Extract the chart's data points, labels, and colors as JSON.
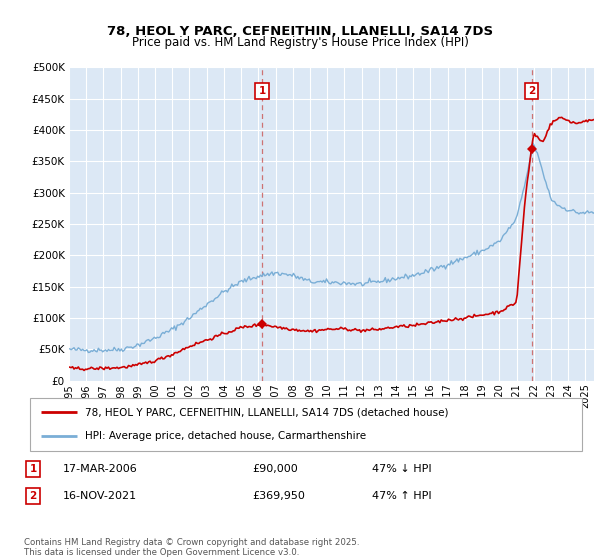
{
  "title": "78, HEOL Y PARC, CEFNEITHIN, LLANELLI, SA14 7DS",
  "subtitle": "Price paid vs. HM Land Registry's House Price Index (HPI)",
  "red_label": "78, HEOL Y PARC, CEFNEITHIN, LLANELLI, SA14 7DS (detached house)",
  "blue_label": "HPI: Average price, detached house, Carmarthenshire",
  "t1_date": "17-MAR-2006",
  "t1_price": 90000,
  "t1_price_str": "£90,000",
  "t1_pct": "47% ↓ HPI",
  "t2_date": "16-NOV-2021",
  "t2_price": 369950,
  "t2_price_str": "£369,950",
  "t2_pct": "47% ↑ HPI",
  "footnote": "Contains HM Land Registry data © Crown copyright and database right 2025.\nThis data is licensed under the Open Government Licence v3.0.",
  "ylim": [
    0,
    500000
  ],
  "yticks": [
    0,
    50000,
    100000,
    150000,
    200000,
    250000,
    300000,
    350000,
    400000,
    450000,
    500000
  ],
  "bg_color": "#dce8f5",
  "fig_bg": "#ffffff",
  "red_color": "#cc0000",
  "blue_color": "#7aaed6",
  "grid_color": "#ffffff",
  "dashed_color": "#cc6666",
  "t1_x": 2006.21,
  "t2_x": 2021.87,
  "t1_y": 90000,
  "t2_y": 369950,
  "xlim_left": 1995,
  "xlim_right": 2025.5
}
